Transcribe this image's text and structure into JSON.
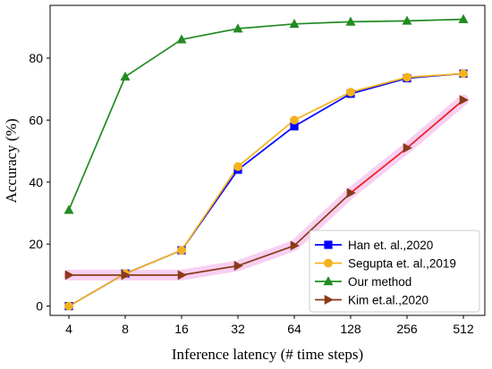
{
  "chart_data": {
    "type": "line",
    "xlabel": "Inference latency (# time steps)",
    "ylabel": "Accuracy (%)",
    "categories": [
      "4",
      "8",
      "16",
      "32",
      "64",
      "128",
      "256",
      "512"
    ],
    "y_ticks": [
      "0",
      "20",
      "40",
      "60",
      "80"
    ],
    "ylim": [
      -3,
      97
    ],
    "grid": false,
    "legend_position": "lower-right",
    "series": [
      {
        "name": "Han et. al.,2020",
        "color": "#0000ff",
        "marker": "square",
        "values": [
          0,
          10.5,
          18,
          44,
          58,
          68.5,
          73.5,
          75
        ]
      },
      {
        "name": "Segupta et. al.,2019",
        "color": "#f5b21c",
        "marker": "circle",
        "values": [
          0,
          10.5,
          18,
          45,
          60,
          69,
          73.8,
          75
        ]
      },
      {
        "name": "Our method",
        "color": "#228b22",
        "marker": "triangle-up",
        "values": [
          31,
          74,
          86,
          89.5,
          91,
          91.7,
          92,
          92.5
        ]
      },
      {
        "name": "Kim et.al.,2020",
        "color": "#8b3a1a",
        "marker": "triangle-right",
        "values": [
          10,
          10,
          10,
          13,
          19.5,
          36.5,
          51,
          66.5
        ],
        "segment_colors": [
          "#8b3a1a",
          "#8b3a1a",
          "#8b3a1a",
          "#8b3a1a",
          "#8b3a1a",
          "#ee1c1c",
          "#ee1c1c"
        ],
        "highlight": "#f7c8f0"
      }
    ]
  }
}
